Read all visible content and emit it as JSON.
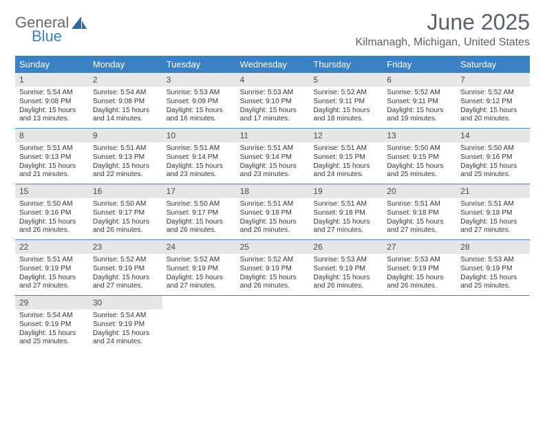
{
  "logo": {
    "text1": "General",
    "text2": "Blue"
  },
  "title": "June 2025",
  "location": "Kilmanagh, Michigan, United States",
  "colors": {
    "header_bg": "#3b82c4",
    "daynum_bg": "#e5e6e8",
    "text": "#333333",
    "title_text": "#58606a"
  },
  "dow": [
    "Sunday",
    "Monday",
    "Tuesday",
    "Wednesday",
    "Thursday",
    "Friday",
    "Saturday"
  ],
  "weeks": [
    {
      "nums": [
        "1",
        "2",
        "3",
        "4",
        "5",
        "6",
        "7"
      ],
      "cells": [
        {
          "sr": "Sunrise: 5:54 AM",
          "ss": "Sunset: 9:08 PM",
          "d1": "Daylight: 15 hours",
          "d2": "and 13 minutes."
        },
        {
          "sr": "Sunrise: 5:54 AM",
          "ss": "Sunset: 9:08 PM",
          "d1": "Daylight: 15 hours",
          "d2": "and 14 minutes."
        },
        {
          "sr": "Sunrise: 5:53 AM",
          "ss": "Sunset: 9:09 PM",
          "d1": "Daylight: 15 hours",
          "d2": "and 16 minutes."
        },
        {
          "sr": "Sunrise: 5:53 AM",
          "ss": "Sunset: 9:10 PM",
          "d1": "Daylight: 15 hours",
          "d2": "and 17 minutes."
        },
        {
          "sr": "Sunrise: 5:52 AM",
          "ss": "Sunset: 9:11 PM",
          "d1": "Daylight: 15 hours",
          "d2": "and 18 minutes."
        },
        {
          "sr": "Sunrise: 5:52 AM",
          "ss": "Sunset: 9:11 PM",
          "d1": "Daylight: 15 hours",
          "d2": "and 19 minutes."
        },
        {
          "sr": "Sunrise: 5:52 AM",
          "ss": "Sunset: 9:12 PM",
          "d1": "Daylight: 15 hours",
          "d2": "and 20 minutes."
        }
      ]
    },
    {
      "nums": [
        "8",
        "9",
        "10",
        "11",
        "12",
        "13",
        "14"
      ],
      "cells": [
        {
          "sr": "Sunrise: 5:51 AM",
          "ss": "Sunset: 9:13 PM",
          "d1": "Daylight: 15 hours",
          "d2": "and 21 minutes."
        },
        {
          "sr": "Sunrise: 5:51 AM",
          "ss": "Sunset: 9:13 PM",
          "d1": "Daylight: 15 hours",
          "d2": "and 22 minutes."
        },
        {
          "sr": "Sunrise: 5:51 AM",
          "ss": "Sunset: 9:14 PM",
          "d1": "Daylight: 15 hours",
          "d2": "and 23 minutes."
        },
        {
          "sr": "Sunrise: 5:51 AM",
          "ss": "Sunset: 9:14 PM",
          "d1": "Daylight: 15 hours",
          "d2": "and 23 minutes."
        },
        {
          "sr": "Sunrise: 5:51 AM",
          "ss": "Sunset: 9:15 PM",
          "d1": "Daylight: 15 hours",
          "d2": "and 24 minutes."
        },
        {
          "sr": "Sunrise: 5:50 AM",
          "ss": "Sunset: 9:15 PM",
          "d1": "Daylight: 15 hours",
          "d2": "and 25 minutes."
        },
        {
          "sr": "Sunrise: 5:50 AM",
          "ss": "Sunset: 9:16 PM",
          "d1": "Daylight: 15 hours",
          "d2": "and 25 minutes."
        }
      ]
    },
    {
      "nums": [
        "15",
        "16",
        "17",
        "18",
        "19",
        "20",
        "21"
      ],
      "cells": [
        {
          "sr": "Sunrise: 5:50 AM",
          "ss": "Sunset: 9:16 PM",
          "d1": "Daylight: 15 hours",
          "d2": "and 26 minutes."
        },
        {
          "sr": "Sunrise: 5:50 AM",
          "ss": "Sunset: 9:17 PM",
          "d1": "Daylight: 15 hours",
          "d2": "and 26 minutes."
        },
        {
          "sr": "Sunrise: 5:50 AM",
          "ss": "Sunset: 9:17 PM",
          "d1": "Daylight: 15 hours",
          "d2": "and 26 minutes."
        },
        {
          "sr": "Sunrise: 5:51 AM",
          "ss": "Sunset: 9:18 PM",
          "d1": "Daylight: 15 hours",
          "d2": "and 26 minutes."
        },
        {
          "sr": "Sunrise: 5:51 AM",
          "ss": "Sunset: 9:18 PM",
          "d1": "Daylight: 15 hours",
          "d2": "and 27 minutes."
        },
        {
          "sr": "Sunrise: 5:51 AM",
          "ss": "Sunset: 9:18 PM",
          "d1": "Daylight: 15 hours",
          "d2": "and 27 minutes."
        },
        {
          "sr": "Sunrise: 5:51 AM",
          "ss": "Sunset: 9:18 PM",
          "d1": "Daylight: 15 hours",
          "d2": "and 27 minutes."
        }
      ]
    },
    {
      "nums": [
        "22",
        "23",
        "24",
        "25",
        "26",
        "27",
        "28"
      ],
      "cells": [
        {
          "sr": "Sunrise: 5:51 AM",
          "ss": "Sunset: 9:19 PM",
          "d1": "Daylight: 15 hours",
          "d2": "and 27 minutes."
        },
        {
          "sr": "Sunrise: 5:52 AM",
          "ss": "Sunset: 9:19 PM",
          "d1": "Daylight: 15 hours",
          "d2": "and 27 minutes."
        },
        {
          "sr": "Sunrise: 5:52 AM",
          "ss": "Sunset: 9:19 PM",
          "d1": "Daylight: 15 hours",
          "d2": "and 27 minutes."
        },
        {
          "sr": "Sunrise: 5:52 AM",
          "ss": "Sunset: 9:19 PM",
          "d1": "Daylight: 15 hours",
          "d2": "and 26 minutes."
        },
        {
          "sr": "Sunrise: 5:53 AM",
          "ss": "Sunset: 9:19 PM",
          "d1": "Daylight: 15 hours",
          "d2": "and 26 minutes."
        },
        {
          "sr": "Sunrise: 5:53 AM",
          "ss": "Sunset: 9:19 PM",
          "d1": "Daylight: 15 hours",
          "d2": "and 26 minutes."
        },
        {
          "sr": "Sunrise: 5:53 AM",
          "ss": "Sunset: 9:19 PM",
          "d1": "Daylight: 15 hours",
          "d2": "and 25 minutes."
        }
      ]
    },
    {
      "nums": [
        "29",
        "30",
        "",
        "",
        "",
        "",
        ""
      ],
      "cells": [
        {
          "sr": "Sunrise: 5:54 AM",
          "ss": "Sunset: 9:19 PM",
          "d1": "Daylight: 15 hours",
          "d2": "and 25 minutes."
        },
        {
          "sr": "Sunrise: 5:54 AM",
          "ss": "Sunset: 9:19 PM",
          "d1": "Daylight: 15 hours",
          "d2": "and 24 minutes."
        },
        null,
        null,
        null,
        null,
        null
      ]
    }
  ]
}
